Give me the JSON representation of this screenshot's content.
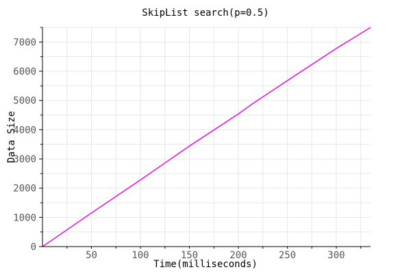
{
  "chart_data": {
    "type": "line",
    "title": "SkipList search(p=0.5)",
    "xlabel": "Time(milliseconds)",
    "ylabel": "Data Size",
    "xlim": [
      0,
      335
    ],
    "ylim": [
      0,
      7500
    ],
    "xticks": [
      50,
      100,
      150,
      200,
      250,
      300
    ],
    "yticks": [
      0,
      1000,
      2000,
      3000,
      4000,
      5000,
      6000,
      7000
    ],
    "grid": true,
    "line_color": "#e619e6",
    "series": [
      {
        "x": [
          0,
          50,
          100,
          150,
          200,
          215,
          250,
          300,
          335
        ],
        "values": [
          0,
          1150,
          2280,
          3440,
          4540,
          4900,
          5680,
          6780,
          7500
        ]
      }
    ]
  }
}
